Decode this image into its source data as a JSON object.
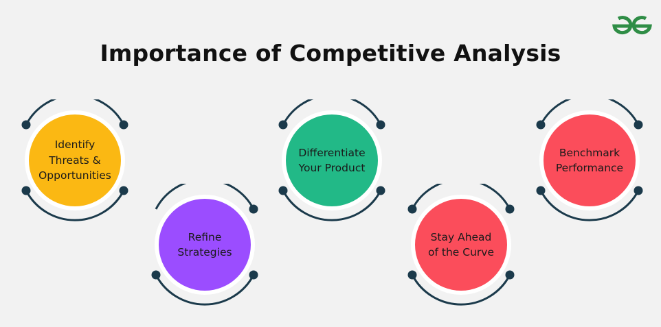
{
  "title": "Importance of Competitive Analysis",
  "logo": {
    "icon": "gfg-logo-icon",
    "color": "#2f8d46"
  },
  "ring_color": "#1b3a4b",
  "items": [
    {
      "label": "Identify\nThreats &\nOpportunities",
      "color": "#fbb813"
    },
    {
      "label": "Refine\nStrategies",
      "color": "#9b4dff"
    },
    {
      "label": "Differentiate\nYour Product",
      "color": "#22b987"
    },
    {
      "label": "Stay Ahead\nof the Curve",
      "color": "#fb4d5b"
    },
    {
      "label": "Benchmark\nPerformance",
      "color": "#fb4d5b"
    }
  ]
}
